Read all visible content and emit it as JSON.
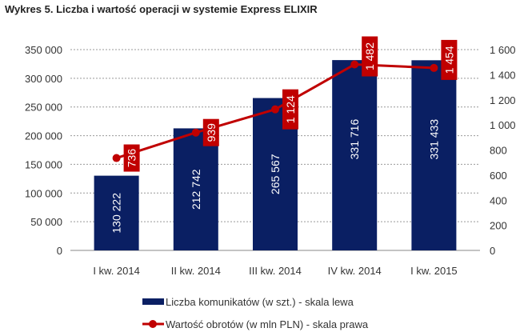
{
  "chart_data": {
    "type": "bar+line",
    "title": "Wykres 5. Liczba i wartość operacji w systemie Express ELIXIR",
    "categories": [
      "I kw. 2014",
      "II kw. 2014",
      "III kw. 2014",
      "IV kw. 2014",
      "I kw. 2015"
    ],
    "series": [
      {
        "name": "Liczba komunikatów (w szt.) - skala lewa",
        "type": "bar",
        "axis": "left",
        "color": "#0a1f63",
        "values": [
          130222,
          212742,
          265567,
          331716,
          331433
        ],
        "labels": [
          "130 222",
          "212 742",
          "265 567",
          "331 716",
          "331 433"
        ]
      },
      {
        "name": "Wartość obrotów (w mln PLN) - skala prawa",
        "type": "line",
        "axis": "right",
        "color": "#c00000",
        "values": [
          736,
          939,
          1124,
          1482,
          1454
        ],
        "labels": [
          "736",
          "939",
          "1 124",
          "1 482",
          "1 454"
        ]
      }
    ],
    "left_axis": {
      "ylim": [
        0,
        350000
      ],
      "ticks": [
        "0",
        "50 000",
        "100 000",
        "150 000",
        "200 000",
        "250 000",
        "300 000",
        "350 000"
      ]
    },
    "right_axis": {
      "ylim": [
        0,
        1600
      ],
      "ticks": [
        "0",
        "200",
        "400",
        "600",
        "800",
        "1 000",
        "1 200",
        "1 400",
        "1 600"
      ]
    },
    "grid": "horizontal dotted",
    "legend": "bottom"
  }
}
